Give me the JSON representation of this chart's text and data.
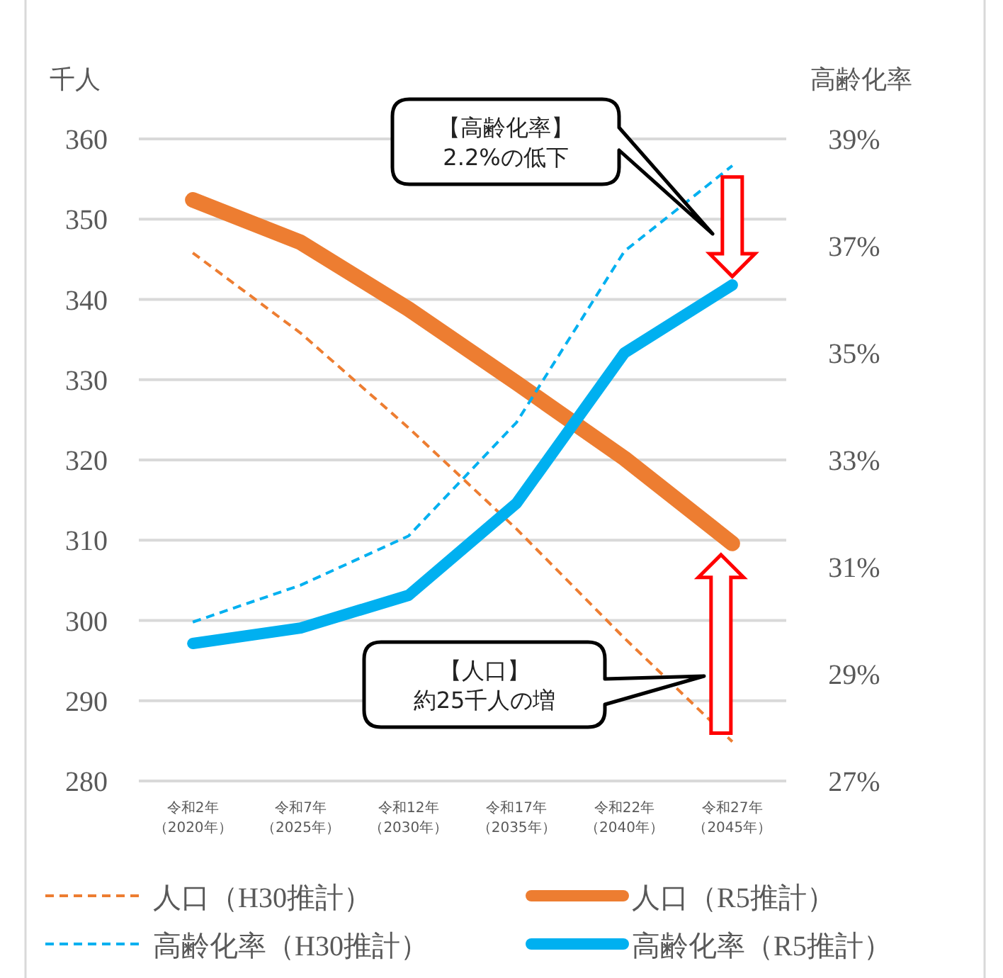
{
  "chart_data": {
    "type": "line",
    "ylabel": "千人",
    "y2label": "高齢化率",
    "categories": [
      "令和2年（2020年）",
      "令和7年（2025年）",
      "令和12年（2030年）",
      "令和17年（2035年）",
      "令和22年（2040年）",
      "令和27年（2045年）"
    ],
    "series": [
      {
        "name": "人口（H30推計）",
        "color": "#ed7d31",
        "line_style": "dashed",
        "values": [
          345.8,
          335.8,
          324,
          311.4,
          297.8,
          284.9
        ]
      },
      {
        "name": "人口（R5推計）",
        "color": "#ed7d31",
        "line_style": "solid",
        "values": [
          352.4,
          347.1,
          338.8,
          329.6,
          320.2,
          309.6
        ]
      },
      {
        "name": "高齢化率（H30推計）",
        "color": "#00b0f0",
        "line_style": "dashed",
        "axis": "y2",
        "values": [
          29.97,
          30.66,
          31.58,
          33.7,
          36.9,
          38.5
        ]
      },
      {
        "name": "高齢化率（R5推計）",
        "color": "#00b0f0",
        "line_style": "solid",
        "axis": "y2",
        "values": [
          29.57,
          29.86,
          30.47,
          32.19,
          35.0,
          36.27
        ]
      }
    ],
    "ylim": [
      280,
      360
    ],
    "yticks": [
      280,
      290,
      300,
      310,
      320,
      330,
      340,
      350,
      360
    ],
    "y2lim": [
      27,
      39
    ],
    "y2ticks": [
      {
        "value": 27,
        "label": "27%"
      },
      {
        "value": 29,
        "label": "29%"
      },
      {
        "value": 31,
        "label": "31%"
      },
      {
        "value": 33,
        "label": "33%"
      },
      {
        "value": 35,
        "label": "35%"
      },
      {
        "value": 37,
        "label": "37%"
      },
      {
        "value": 39,
        "label": "39%"
      }
    ],
    "grid": "y",
    "legend": "bottom",
    "marker": "none",
    "annotations": [
      "【高齢化率】2.2%の低下",
      "【人口】約25千人の増"
    ]
  }
}
